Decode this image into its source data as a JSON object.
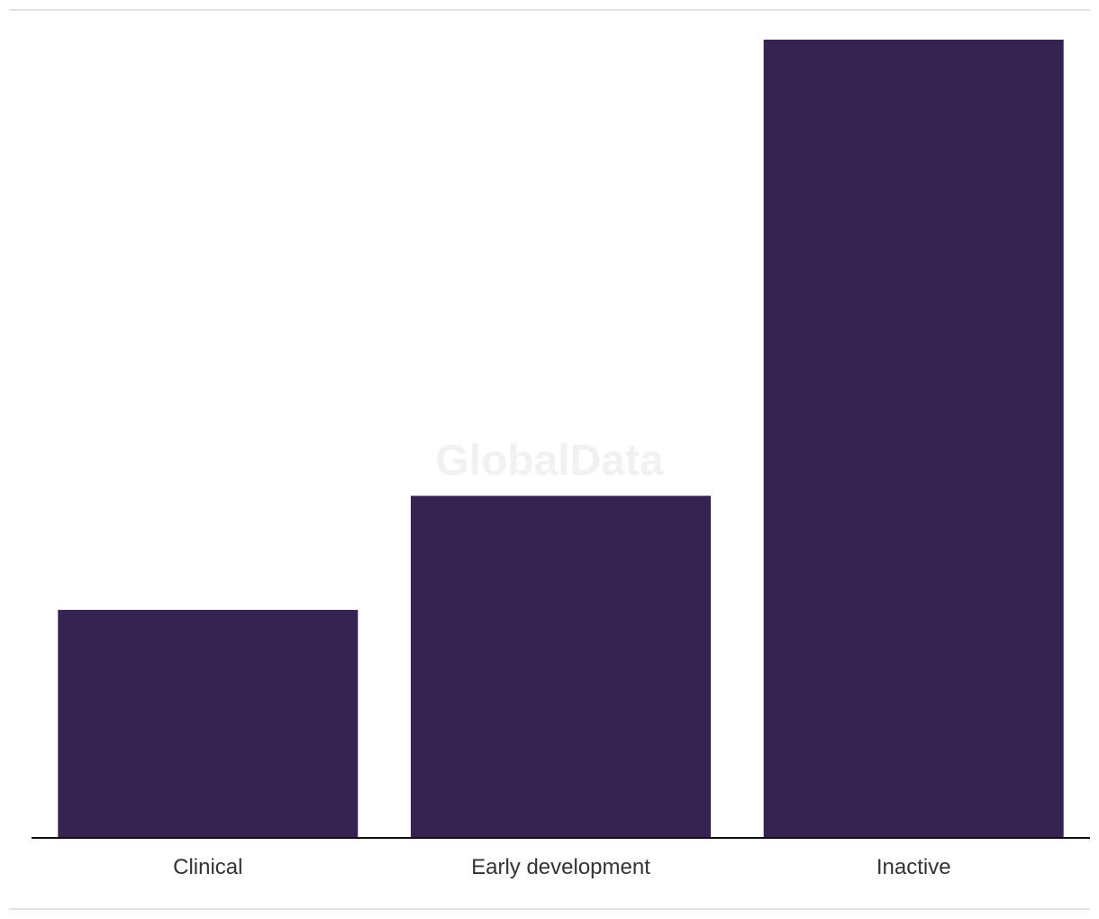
{
  "watermark": "GlobalData",
  "colors": {
    "bar": "#352452",
    "axis": "#111111",
    "frame": "#e3e3e3",
    "tick_label": "#333333",
    "watermark": "#f1f1f1"
  },
  "chart_data": {
    "type": "bar",
    "categories": [
      "Clinical",
      "Early development",
      "Inactive"
    ],
    "values": [
      2,
      3,
      7
    ],
    "title": "",
    "xlabel": "",
    "ylabel": "",
    "ylim": [
      0,
      7
    ],
    "grid": false,
    "legend": "none",
    "y_axis_labels": "hidden"
  }
}
